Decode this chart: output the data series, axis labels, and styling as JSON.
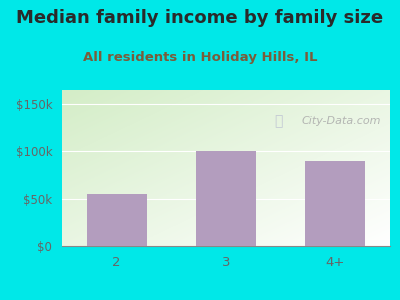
{
  "title": "Median family income by family size",
  "subtitle": "All residents in Holiday Hills, IL",
  "categories": [
    "2",
    "3",
    "4+"
  ],
  "values": [
    55000,
    100000,
    90000
  ],
  "bar_color": "#b39dbe",
  "outer_bg": "#00e8e8",
  "title_color": "#2a2a2a",
  "subtitle_color": "#7a5c3a",
  "tick_label_color": "#666666",
  "yticks": [
    0,
    50000,
    100000,
    150000
  ],
  "ytick_labels": [
    "$0",
    "$50k",
    "$100k",
    "$150k"
  ],
  "ylim": [
    0,
    165000
  ],
  "watermark_text": "City-Data.com",
  "watermark_color": "#aaaaaa",
  "title_fontsize": 13,
  "subtitle_fontsize": 9.5,
  "tick_fontsize": 8.5
}
